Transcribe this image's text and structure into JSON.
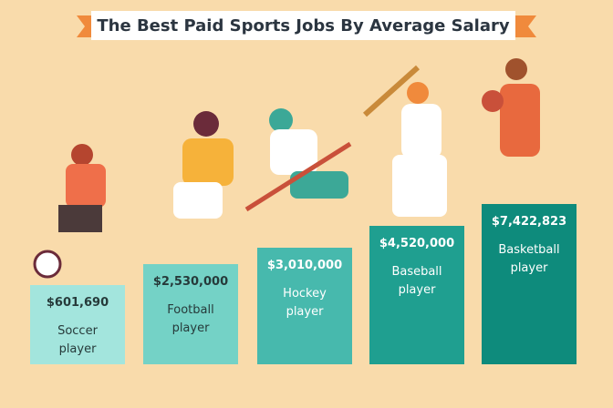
{
  "title": "The Best Paid Sports Jobs By Average Salary",
  "items": [
    {
      "amount": "$601,690",
      "label": "Soccer player"
    },
    {
      "amount": "$2,530,000",
      "label": "Football player"
    },
    {
      "amount": "$3,010,000",
      "label": "Hockey player"
    },
    {
      "amount": "$4,520,000",
      "label": "Baseball player"
    },
    {
      "amount": "$7,422,823",
      "label": "Basketball player"
    }
  ]
}
